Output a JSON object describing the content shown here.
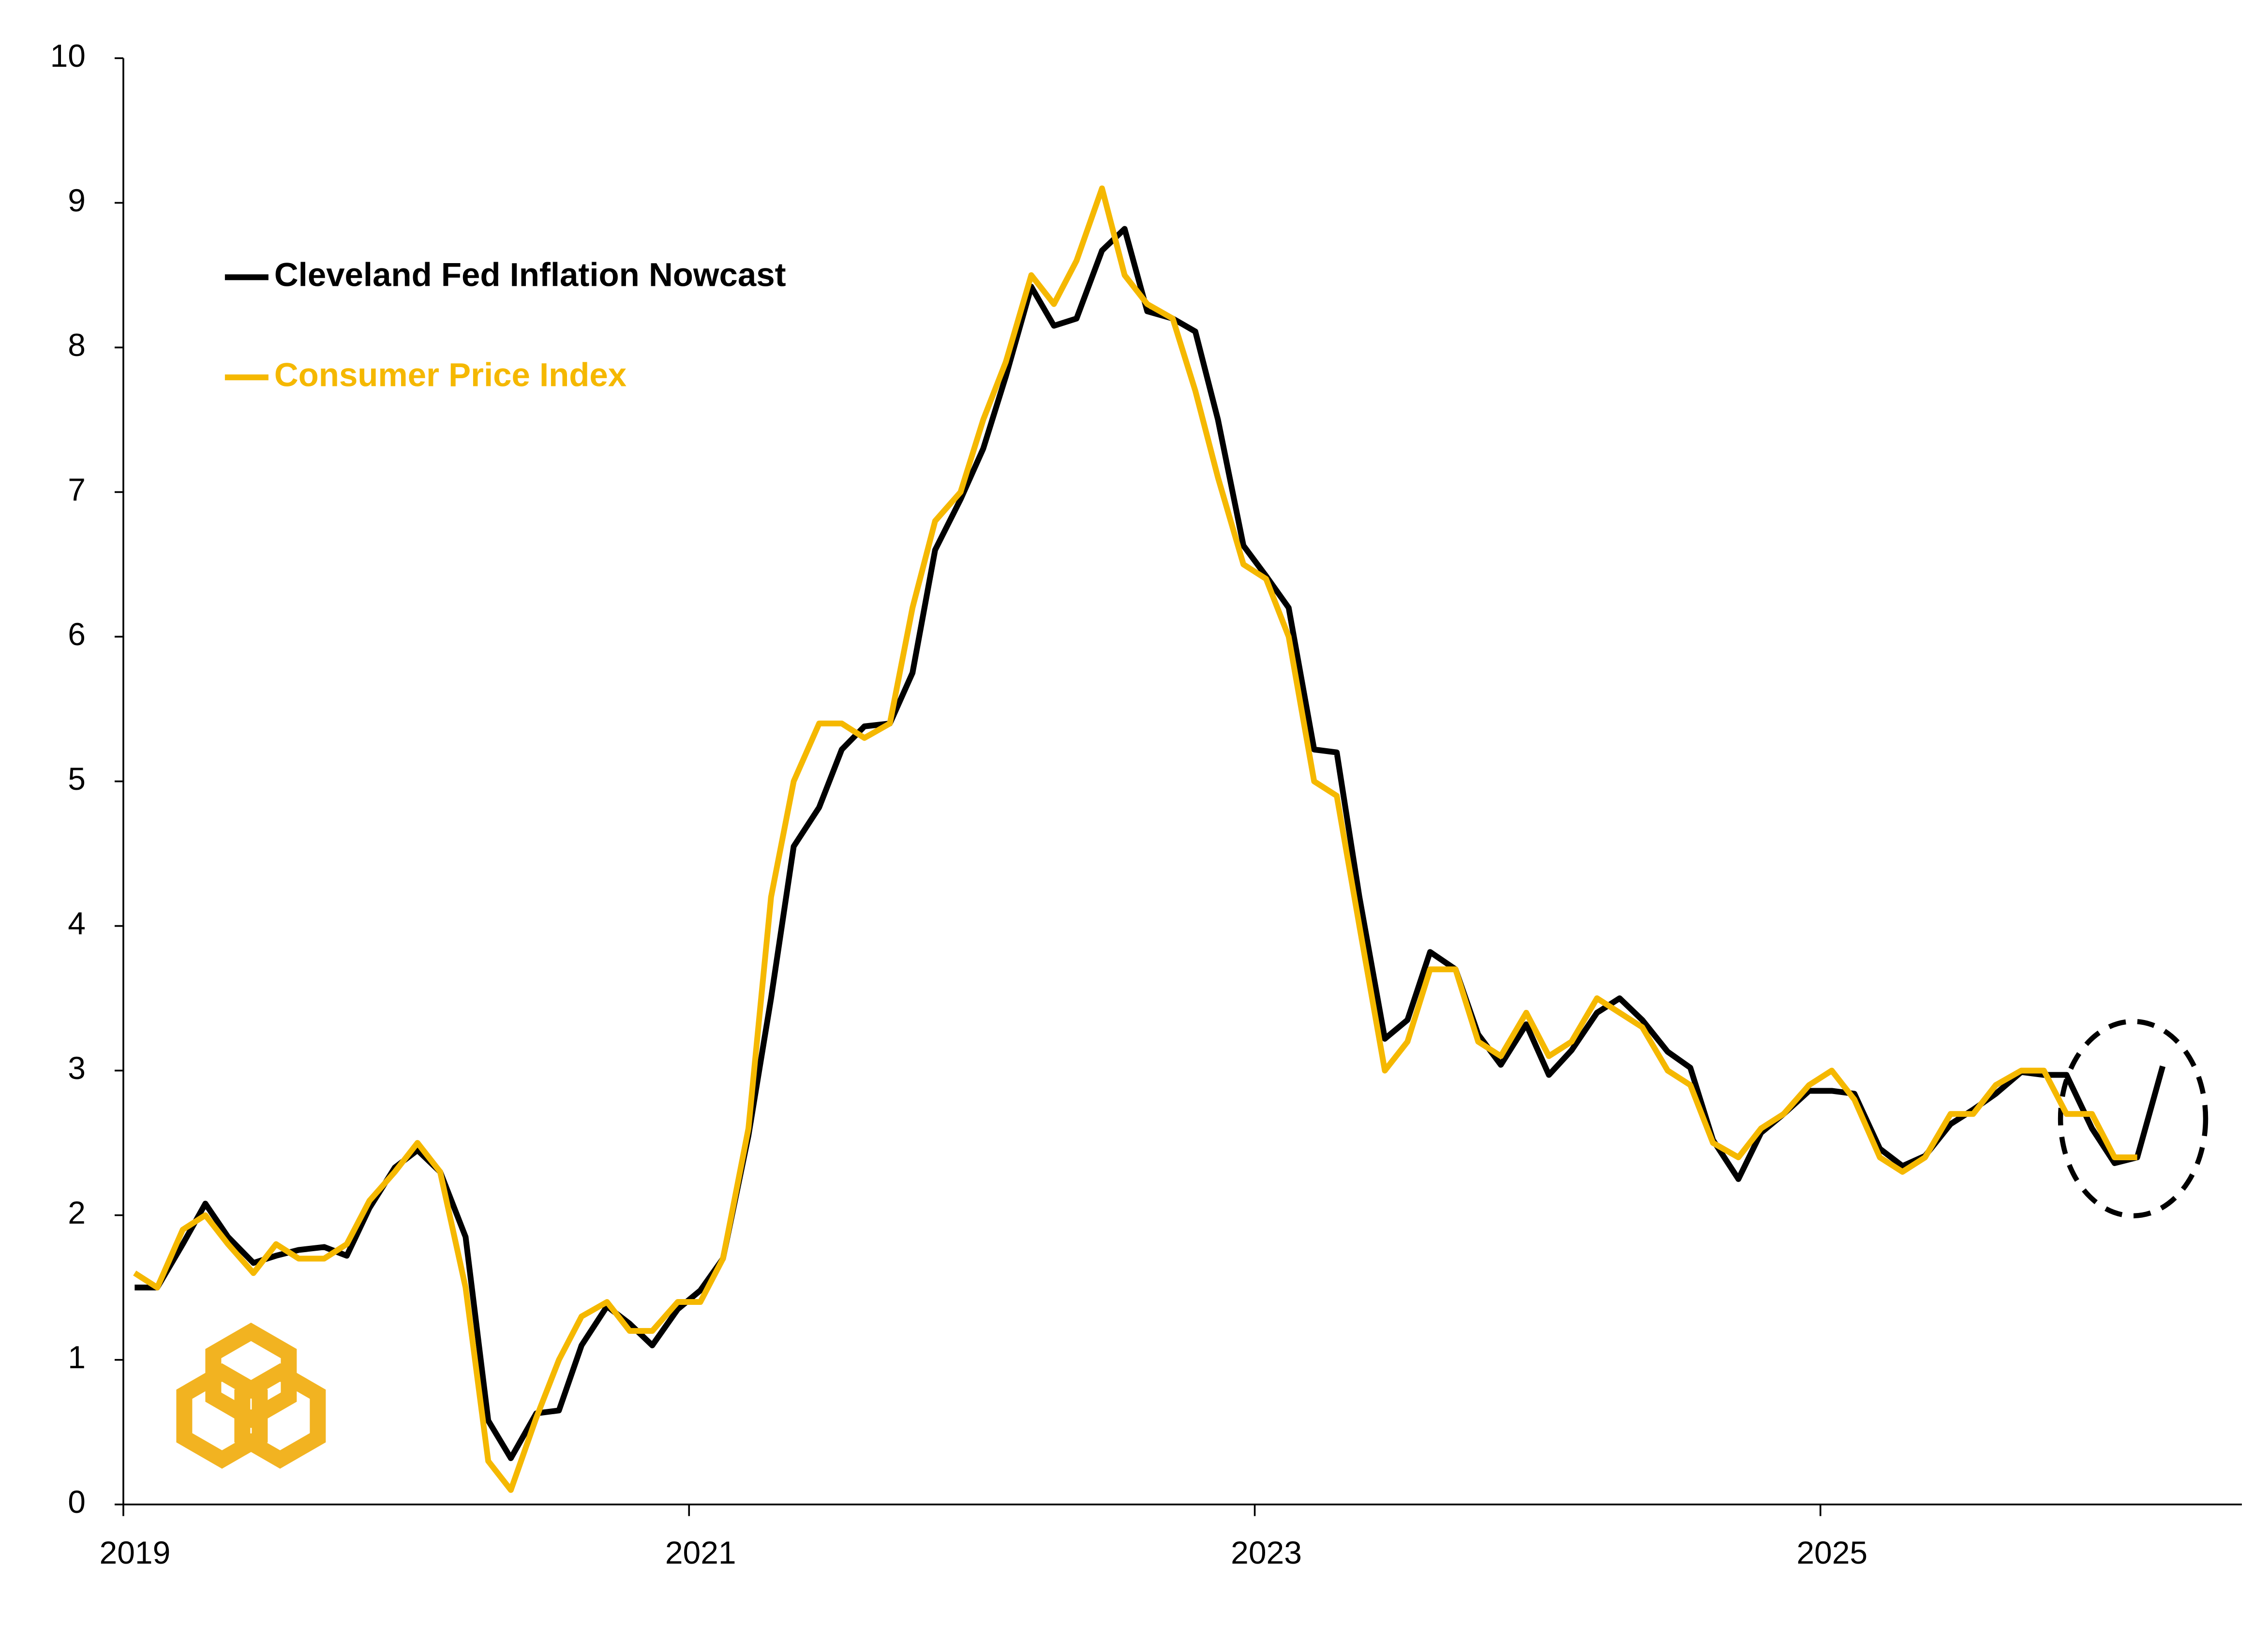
{
  "chart_data": {
    "type": "line",
    "x": [
      2019.04,
      2019.12,
      2019.21,
      2019.29,
      2019.37,
      2019.46,
      2019.54,
      2019.62,
      2019.71,
      2019.79,
      2019.87,
      2019.96,
      2020.04,
      2020.12,
      2020.21,
      2020.29,
      2020.37,
      2020.46,
      2020.54,
      2020.62,
      2020.71,
      2020.79,
      2020.87,
      2020.96,
      2021.04,
      2021.12,
      2021.21,
      2021.29,
      2021.37,
      2021.46,
      2021.54,
      2021.62,
      2021.71,
      2021.79,
      2021.87,
      2021.96,
      2022.04,
      2022.12,
      2022.21,
      2022.29,
      2022.37,
      2022.46,
      2022.54,
      2022.62,
      2022.71,
      2022.79,
      2022.87,
      2022.96,
      2023.04,
      2023.12,
      2023.21,
      2023.29,
      2023.37,
      2023.46,
      2023.54,
      2023.62,
      2023.71,
      2023.79,
      2023.87,
      2023.96,
      2024.04,
      2024.12,
      2024.21,
      2024.29,
      2024.37,
      2024.46,
      2024.54,
      2024.62,
      2024.71,
      2024.79,
      2024.87,
      2024.96,
      2025.04,
      2025.12,
      2025.21,
      2025.29,
      2025.37,
      2025.46,
      2025.54,
      2025.62,
      2025.71,
      2025.79,
      2025.87,
      2025.96,
      2026.04,
      2026.12,
      2026.21
    ],
    "series": [
      {
        "name": "Cleveland Fed Inflation Nowcast",
        "color": "#000000",
        "values": [
          1.5,
          1.5,
          1.8,
          2.08,
          1.85,
          1.67,
          1.72,
          1.76,
          1.78,
          1.72,
          2.05,
          2.33,
          2.45,
          2.3,
          1.85,
          0.58,
          0.32,
          0.63,
          0.65,
          1.1,
          1.37,
          1.25,
          1.1,
          1.35,
          1.48,
          1.7,
          2.55,
          3.5,
          4.55,
          4.82,
          5.22,
          5.38,
          5.4,
          5.75,
          6.6,
          6.95,
          7.3,
          7.8,
          8.42,
          8.15,
          8.2,
          8.67,
          8.82,
          8.25,
          8.2,
          8.11,
          7.5,
          6.63,
          6.42,
          6.2,
          5.22,
          5.2,
          4.2,
          3.22,
          3.35,
          3.82,
          3.7,
          3.25,
          3.04,
          3.32,
          2.97,
          3.14,
          3.4,
          3.5,
          3.35,
          3.13,
          3.02,
          2.52,
          2.25,
          2.57,
          2.7,
          2.86,
          2.86,
          2.84,
          2.46,
          2.34,
          2.41,
          2.63,
          2.73,
          2.84,
          2.99,
          2.97,
          2.97,
          2.6,
          2.36,
          2.4,
          3.03
        ]
      },
      {
        "name": "Consumer Price Index",
        "color": "#f5b800",
        "values": [
          1.6,
          1.5,
          1.9,
          2.0,
          1.8,
          1.6,
          1.8,
          1.7,
          1.7,
          1.8,
          2.1,
          2.3,
          2.5,
          2.3,
          1.5,
          0.3,
          0.1,
          0.6,
          1.0,
          1.3,
          1.4,
          1.2,
          1.2,
          1.4,
          1.4,
          1.7,
          2.6,
          4.2,
          5.0,
          5.4,
          5.4,
          5.3,
          5.4,
          6.2,
          6.8,
          7.0,
          7.5,
          7.9,
          8.5,
          8.3,
          8.6,
          9.1,
          8.5,
          8.3,
          8.2,
          7.7,
          7.1,
          6.5,
          6.4,
          6.0,
          5.0,
          4.9,
          4.0,
          3.0,
          3.2,
          3.7,
          3.7,
          3.2,
          3.1,
          3.4,
          3.1,
          3.2,
          3.5,
          3.4,
          3.3,
          3.0,
          2.9,
          2.5,
          2.4,
          2.6,
          2.7,
          2.9,
          3.0,
          2.8,
          2.4,
          2.3,
          2.4,
          2.7,
          2.7,
          2.9,
          3.0,
          3.0,
          2.7,
          2.7,
          2.4,
          2.4,
          null
        ]
      }
    ],
    "xlim": [
      2019,
      2026.49
    ],
    "xticks": [
      2019,
      2021,
      2023,
      2025
    ],
    "ylim": [
      0,
      10
    ],
    "yticks": [
      0,
      1,
      2,
      3,
      4,
      5,
      6,
      7,
      8,
      9,
      10
    ],
    "grid": false,
    "legend": "upper left"
  }
}
